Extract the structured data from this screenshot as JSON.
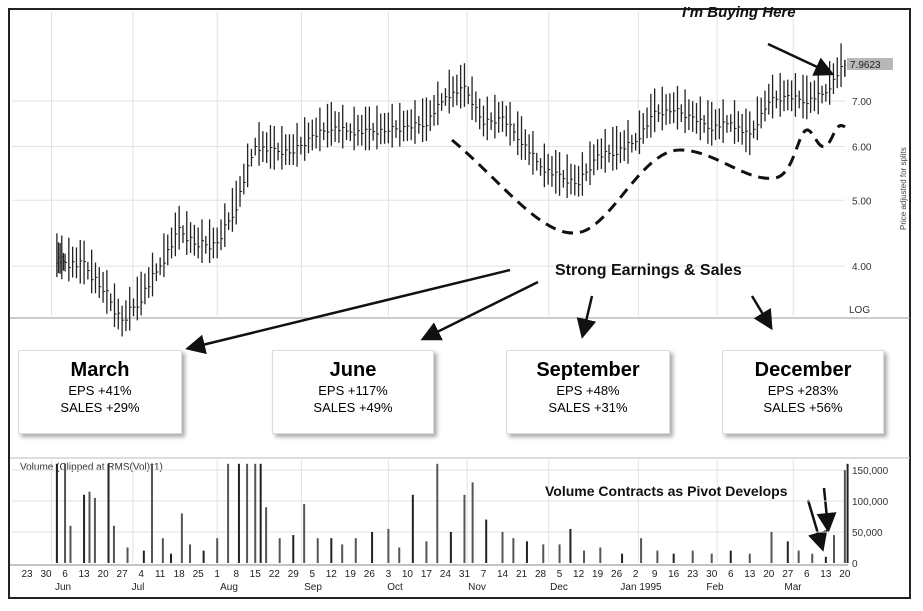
{
  "chart_data": [
    {
      "type": "line",
      "title": "",
      "price_axis_label": "Price adjusted for splits",
      "scale": "log",
      "scale_label": "LOG",
      "ylim": [
        3.2,
        8.2
      ],
      "y_ticks": [
        "4.00",
        "5.00",
        "6.00",
        "7.00"
      ],
      "last_price_label": "7.9623",
      "grid": true,
      "series": [
        {
          "dates": [
            "1994-06-03",
            "1994-06-06",
            "1994-06-13",
            "1994-06-20",
            "1994-06-27",
            "1994-07-04",
            "1994-07-11",
            "1994-07-18",
            "1994-07-25",
            "1994-08-01",
            "1994-08-08",
            "1994-08-15",
            "1994-08-22",
            "1994-08-29",
            "1994-09-05",
            "1994-09-12",
            "1994-09-19",
            "1994-09-26",
            "1994-10-03",
            "1994-10-10",
            "1994-10-17",
            "1994-10-24",
            "1994-10-31",
            "1994-11-07",
            "1994-11-14",
            "1994-11-21",
            "1994-11-28",
            "1994-12-05",
            "1994-12-12",
            "1994-12-19",
            "1994-12-26",
            "1995-01-02",
            "1995-01-09",
            "1995-01-16",
            "1995-01-23",
            "1995-01-30",
            "1995-02-06",
            "1995-02-13",
            "1995-02-20",
            "1995-02-27",
            "1995-03-06",
            "1995-03-13",
            "1995-03-20"
          ],
          "values": [
            4.1,
            4.05,
            4.0,
            3.7,
            3.3,
            3.6,
            4.0,
            4.5,
            4.3,
            4.3,
            4.9,
            6.0,
            5.9,
            5.9,
            6.2,
            6.4,
            6.3,
            6.3,
            6.35,
            6.4,
            6.5,
            7.1,
            7.3,
            6.5,
            6.6,
            6.1,
            5.6,
            5.4,
            5.3,
            5.8,
            5.9,
            6.1,
            6.7,
            6.8,
            6.6,
            6.4,
            6.5,
            6.2,
            7.0,
            7.1,
            7.0,
            7.2,
            7.96
          ]
        }
      ]
    },
    {
      "type": "bar",
      "title": "Volume (Clipped at RMS(Vol)*1)",
      "y_ticks": [
        "0",
        "50,000",
        "100,000",
        "150,000"
      ],
      "ylim": [
        0,
        160000
      ],
      "dates": [
        "1994-06-03",
        "1994-06-06",
        "1994-06-08",
        "1994-06-13",
        "1994-06-15",
        "1994-06-17",
        "1994-06-22",
        "1994-06-24",
        "1994-06-29",
        "1994-07-05",
        "1994-07-08",
        "1994-07-12",
        "1994-07-15",
        "1994-07-19",
        "1994-07-22",
        "1994-07-27",
        "1994-08-01",
        "1994-08-05",
        "1994-08-09",
        "1994-08-12",
        "1994-08-15",
        "1994-08-17",
        "1994-08-19",
        "1994-08-24",
        "1994-08-29",
        "1994-09-02",
        "1994-09-07",
        "1994-09-12",
        "1994-09-16",
        "1994-09-21",
        "1994-09-27",
        "1994-10-03",
        "1994-10-07",
        "1994-10-12",
        "1994-10-17",
        "1994-10-21",
        "1994-10-26",
        "1994-10-31",
        "1994-11-03",
        "1994-11-08",
        "1994-11-14",
        "1994-11-18",
        "1994-11-23",
        "1994-11-29",
        "1994-12-05",
        "1994-12-09",
        "1994-12-14",
        "1994-12-20",
        "1994-12-28",
        "1995-01-04",
        "1995-01-10",
        "1995-01-16",
        "1995-01-23",
        "1995-01-30",
        "1995-02-06",
        "1995-02-13",
        "1995-02-21",
        "1995-02-27",
        "1995-03-03",
        "1995-03-08",
        "1995-03-13",
        "1995-03-16",
        "1995-03-20",
        "1995-03-21"
      ],
      "values": [
        160000,
        160000,
        60000,
        110000,
        115000,
        105000,
        160000,
        60000,
        25000,
        20000,
        160000,
        40000,
        15000,
        80000,
        30000,
        20000,
        40000,
        160000,
        160000,
        160000,
        160000,
        160000,
        90000,
        40000,
        45000,
        95000,
        40000,
        40000,
        30000,
        40000,
        50000,
        55000,
        25000,
        110000,
        35000,
        160000,
        50000,
        110000,
        130000,
        70000,
        50000,
        40000,
        35000,
        30000,
        30000,
        55000,
        20000,
        25000,
        15000,
        40000,
        20000,
        15000,
        20000,
        15000,
        20000,
        15000,
        50000,
        35000,
        20000,
        15000,
        10000,
        45000,
        150000,
        160000
      ]
    }
  ],
  "x_axis": {
    "day_ticks": [
      "23",
      "30",
      "6",
      "13",
      "20",
      "27",
      "4",
      "11",
      "18",
      "25",
      "1",
      "8",
      "15",
      "22",
      "29",
      "5",
      "12",
      "19",
      "26",
      "3",
      "10",
      "17",
      "24",
      "31",
      "7",
      "14",
      "21",
      "28",
      "5",
      "12",
      "19",
      "26",
      "2",
      "9",
      "16",
      "23",
      "30",
      "6",
      "13",
      "20",
      "27",
      "6",
      "13",
      "20"
    ],
    "months": [
      "Jun",
      "Jul",
      "Aug",
      "Sep",
      "Oct",
      "Nov",
      "Dec",
      "Jan 1995",
      "Feb",
      "Mar"
    ]
  },
  "annotations": {
    "buying": "I'm Buying Here",
    "earnings": "Strong Earnings & Sales",
    "volume_note": "Volume Contracts as Pivot Develops"
  },
  "quarters": [
    {
      "month": "March",
      "eps": "EPS +41%",
      "sales": "SALES +29%"
    },
    {
      "month": "June",
      "eps": "EPS +117%",
      "sales": "SALES +49%"
    },
    {
      "month": "September",
      "eps": "EPS +48%",
      "sales": "SALES +31%"
    },
    {
      "month": "December",
      "eps": "EPS +283%",
      "sales": "SALES +56%"
    }
  ],
  "colors": {
    "price": "#222222",
    "volume": "#555555",
    "grid": "#e2e2e2",
    "last_price_bg": "#b8b8b8"
  }
}
